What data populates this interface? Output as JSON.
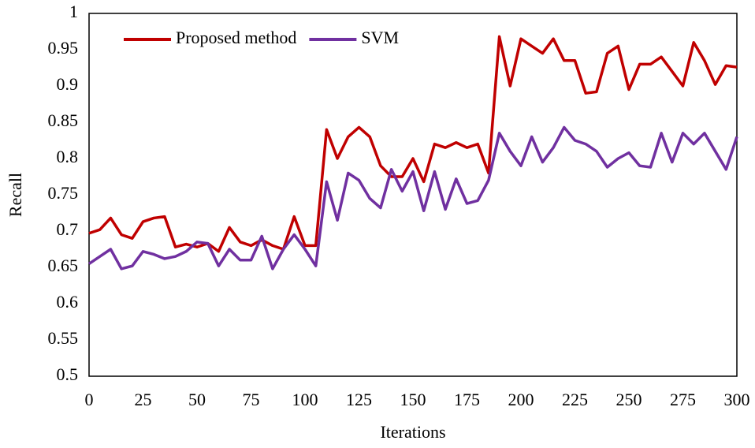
{
  "chart_data": {
    "type": "line",
    "x_label": "Iterations",
    "y_label": "Recall",
    "x": [
      0,
      5,
      10,
      15,
      20,
      25,
      30,
      35,
      40,
      45,
      50,
      55,
      60,
      65,
      70,
      75,
      80,
      85,
      90,
      95,
      100,
      105,
      110,
      115,
      120,
      125,
      130,
      135,
      140,
      145,
      150,
      155,
      160,
      165,
      170,
      175,
      180,
      185,
      190,
      195,
      200,
      205,
      210,
      215,
      220,
      225,
      230,
      235,
      240,
      245,
      250,
      255,
      260,
      265,
      270,
      275,
      280,
      285,
      290,
      295,
      300
    ],
    "series": [
      {
        "name": "Proposed method",
        "color": "#c00000",
        "values": [
          0.697,
          0.702,
          0.718,
          0.695,
          0.69,
          0.713,
          0.718,
          0.72,
          0.678,
          0.682,
          0.678,
          0.683,
          0.672,
          0.705,
          0.685,
          0.68,
          0.688,
          0.68,
          0.675,
          0.72,
          0.68,
          0.68,
          0.84,
          0.8,
          0.83,
          0.843,
          0.83,
          0.79,
          0.775,
          0.775,
          0.8,
          0.768,
          0.82,
          0.815,
          0.822,
          0.815,
          0.82,
          0.78,
          0.968,
          0.9,
          0.965,
          0.955,
          0.945,
          0.965,
          0.935,
          0.935,
          0.89,
          0.892,
          0.945,
          0.955,
          0.895,
          0.93,
          0.93,
          0.94,
          0.92,
          0.9,
          0.96,
          0.935,
          0.902,
          0.928,
          0.926
        ]
      },
      {
        "name": "SVM",
        "color": "#7030a0",
        "values": [
          0.655,
          0.665,
          0.675,
          0.648,
          0.652,
          0.672,
          0.668,
          0.662,
          0.665,
          0.672,
          0.685,
          0.683,
          0.652,
          0.675,
          0.66,
          0.66,
          0.693,
          0.648,
          0.675,
          0.695,
          0.675,
          0.652,
          0.768,
          0.715,
          0.78,
          0.77,
          0.745,
          0.732,
          0.785,
          0.755,
          0.782,
          0.728,
          0.782,
          0.73,
          0.772,
          0.738,
          0.742,
          0.77,
          0.835,
          0.81,
          0.79,
          0.83,
          0.795,
          0.815,
          0.843,
          0.825,
          0.82,
          0.81,
          0.788,
          0.8,
          0.808,
          0.79,
          0.788,
          0.835,
          0.795,
          0.835,
          0.82,
          0.835,
          0.81,
          0.785,
          0.83
        ]
      }
    ],
    "xlim": [
      0,
      300
    ],
    "xticks": [
      0,
      25,
      50,
      75,
      100,
      125,
      150,
      175,
      200,
      225,
      250,
      275,
      300
    ],
    "ylim": [
      0.5,
      1
    ],
    "yticks": [
      0.5,
      0.55,
      0.6,
      0.65,
      0.7,
      0.75,
      0.8,
      0.85,
      0.9,
      0.95,
      1
    ],
    "grid": false,
    "legend": "upper left"
  }
}
